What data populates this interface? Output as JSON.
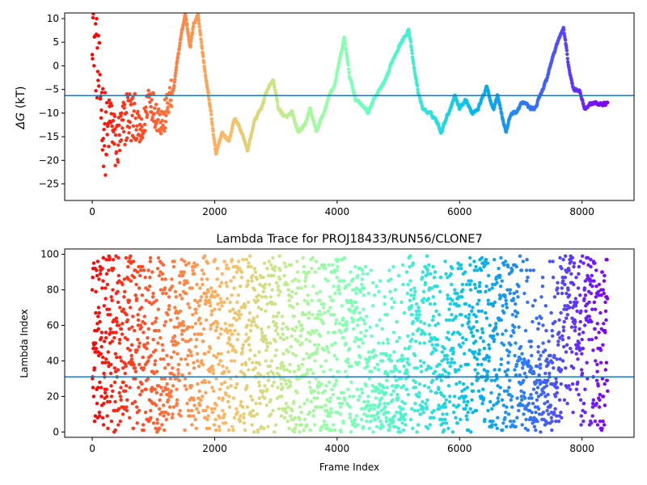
{
  "chart_data": [
    {
      "type": "scatter",
      "title": "",
      "xlabel": "",
      "ylabel": "ΔG (kT)",
      "ylabel_symbol": "ΔG",
      "ylabel_unit": "(kT)",
      "xlim": [
        -450,
        8850
      ],
      "ylim": [
        -28.5,
        11.2
      ],
      "xticks": [
        0,
        2000,
        4000,
        6000,
        8000
      ],
      "yticks": [
        10,
        5,
        0,
        -5,
        -10,
        -15,
        -20,
        -25
      ],
      "hline": -6.3,
      "colormap": "rainbow",
      "color_by": "frame index (early = red, late = violet)",
      "n_frames": 8420,
      "trace": [
        [
          0,
          11
        ],
        [
          60,
          3
        ],
        [
          120,
          -4
        ],
        [
          180,
          -12
        ],
        [
          240,
          -16
        ],
        [
          300,
          -10
        ],
        [
          380,
          -17
        ],
        [
          480,
          -14
        ],
        [
          580,
          -10
        ],
        [
          700,
          -12
        ],
        [
          820,
          -15
        ],
        [
          920,
          -6
        ],
        [
          1040,
          -10
        ],
        [
          1160,
          -12
        ],
        [
          1240,
          -8
        ],
        [
          1330,
          -5
        ],
        [
          1400,
          2
        ],
        [
          1460,
          7
        ],
        [
          1520,
          11
        ],
        [
          1600,
          4
        ],
        [
          1660,
          9
        ],
        [
          1730,
          11
        ],
        [
          1800,
          3
        ],
        [
          1860,
          -3
        ],
        [
          1940,
          -10
        ],
        [
          2020,
          -19
        ],
        [
          2120,
          -14
        ],
        [
          2230,
          -16
        ],
        [
          2330,
          -11
        ],
        [
          2440,
          -14
        ],
        [
          2540,
          -18
        ],
        [
          2640,
          -12
        ],
        [
          2760,
          -9
        ],
        [
          2860,
          -5
        ],
        [
          2960,
          -3
        ],
        [
          3040,
          -9
        ],
        [
          3160,
          -11
        ],
        [
          3260,
          -10
        ],
        [
          3360,
          -14
        ],
        [
          3460,
          -13
        ],
        [
          3560,
          -9
        ],
        [
          3660,
          -14
        ],
        [
          3780,
          -10
        ],
        [
          3880,
          -6
        ],
        [
          3960,
          -4
        ],
        [
          4040,
          1
        ],
        [
          4120,
          6
        ],
        [
          4200,
          -2
        ],
        [
          4300,
          -7
        ],
        [
          4400,
          -8
        ],
        [
          4500,
          -10
        ],
        [
          4600,
          -7
        ],
        [
          4700,
          -5
        ],
        [
          4800,
          -3
        ],
        [
          4900,
          1
        ],
        [
          5000,
          4
        ],
        [
          5100,
          6
        ],
        [
          5170,
          8
        ],
        [
          5250,
          0
        ],
        [
          5330,
          -6
        ],
        [
          5400,
          -9
        ],
        [
          5500,
          -10
        ],
        [
          5600,
          -11
        ],
        [
          5700,
          -14
        ],
        [
          5780,
          -11
        ],
        [
          5850,
          -9
        ],
        [
          5920,
          -6
        ],
        [
          6000,
          -9
        ],
        [
          6100,
          -7
        ],
        [
          6200,
          -10
        ],
        [
          6300,
          -9
        ],
        [
          6400,
          -6
        ],
        [
          6440,
          -4
        ],
        [
          6500,
          -7
        ],
        [
          6560,
          -9
        ],
        [
          6620,
          -6
        ],
        [
          6700,
          -11
        ],
        [
          6760,
          -14
        ],
        [
          6840,
          -10
        ],
        [
          6920,
          -10
        ],
        [
          7000,
          -8
        ],
        [
          7080,
          -8
        ],
        [
          7160,
          -9
        ],
        [
          7240,
          -9
        ],
        [
          7320,
          -6
        ],
        [
          7420,
          -3
        ],
        [
          7500,
          1
        ],
        [
          7600,
          5
        ],
        [
          7700,
          8
        ],
        [
          7780,
          0
        ],
        [
          7860,
          -5
        ],
        [
          7960,
          -5
        ],
        [
          8040,
          -9
        ],
        [
          8140,
          -8
        ],
        [
          8260,
          -8
        ],
        [
          8400,
          -8
        ]
      ]
    },
    {
      "type": "scatter",
      "title": "Lambda Trace for PROJ18433/RUN56/CLONE7",
      "xlabel": "Frame Index",
      "ylabel": "Lambda Index",
      "xlim": [
        -450,
        8850
      ],
      "ylim": [
        -3,
        103
      ],
      "xticks": [
        0,
        2000,
        4000,
        6000,
        8000
      ],
      "yticks": [
        100,
        80,
        60,
        40,
        20,
        0
      ],
      "hline": 31,
      "colormap": "rainbow",
      "color_by": "frame index (early = red, late = violet)",
      "n_frames": 8420,
      "lambda_range": [
        0,
        99
      ],
      "low_density_bands": [
        [
          4450,
          4600,
          "low"
        ],
        [
          4550,
          5150,
          "low"
        ],
        [
          5650,
          5800,
          "low"
        ],
        [
          6950,
          7600,
          "low"
        ],
        [
          7700,
          7900,
          "high"
        ],
        [
          8050,
          8200,
          "high"
        ]
      ]
    }
  ]
}
